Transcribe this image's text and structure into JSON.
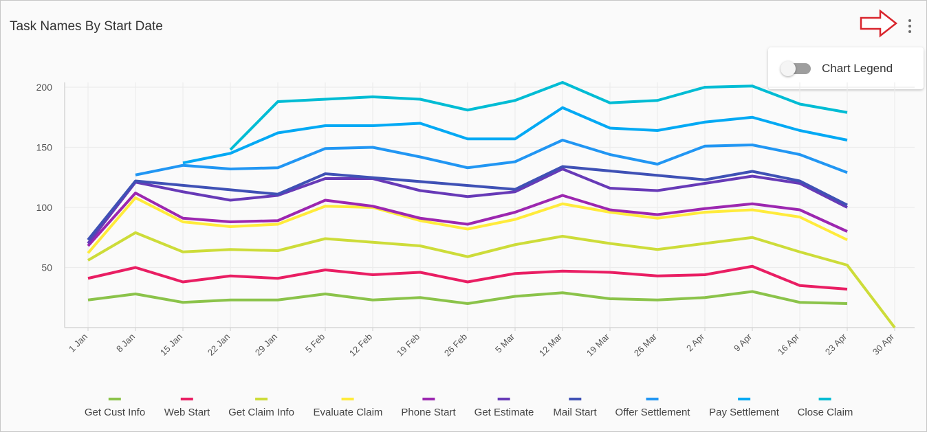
{
  "header": {
    "title": "Task Names By Start Date"
  },
  "menu": {
    "icon": "more-vertical-icon",
    "annotation_icon": "red-arrow-right-icon"
  },
  "legend_popup": {
    "label": "Chart Legend",
    "toggle_on": false
  },
  "colors": {
    "annotation": "#d9252d",
    "grid": "#e8e8e8"
  },
  "chart_data": {
    "type": "line",
    "title": "Task Names By Start Date",
    "xlabel": "",
    "ylabel": "",
    "ylim": [
      0,
      200
    ],
    "yticks": [
      50,
      100,
      150,
      200
    ],
    "grid": true,
    "legend_position": "bottom",
    "categories": [
      "1 Jan",
      "8 Jan",
      "15 Jan",
      "22 Jan",
      "29 Jan",
      "5 Feb",
      "12 Feb",
      "19 Feb",
      "26 Feb",
      "5 Mar",
      "12 Mar",
      "19 Mar",
      "26 Mar",
      "2 Apr",
      "9 Apr",
      "16 Apr",
      "23 Apr",
      "30 Apr"
    ],
    "series": [
      {
        "name": "Get Cust Info",
        "color": "#8bc34a",
        "values": [
          23,
          28,
          21,
          23,
          23,
          28,
          23,
          25,
          20,
          26,
          29,
          24,
          23,
          25,
          30,
          21,
          20,
          null
        ]
      },
      {
        "name": "Web Start",
        "color": "#e91e63",
        "values": [
          41,
          50,
          38,
          43,
          41,
          48,
          44,
          46,
          38,
          45,
          47,
          46,
          43,
          44,
          51,
          35,
          32,
          null
        ]
      },
      {
        "name": "Get Claim Info",
        "color": "#cddc39",
        "values": [
          56,
          79,
          63,
          65,
          64,
          74,
          71,
          68,
          59,
          69,
          76,
          70,
          65,
          70,
          75,
          63,
          52,
          0
        ]
      },
      {
        "name": "Evaluate Claim",
        "color": "#ffeb3b",
        "values": [
          62,
          108,
          88,
          84,
          86,
          101,
          100,
          89,
          82,
          90,
          103,
          96,
          91,
          96,
          98,
          92,
          73,
          null
        ]
      },
      {
        "name": "Phone Start",
        "color": "#9c27b0",
        "values": [
          68,
          112,
          91,
          88,
          89,
          106,
          101,
          91,
          86,
          96,
          110,
          98,
          94,
          99,
          103,
          98,
          80,
          null
        ]
      },
      {
        "name": "Get Estimate",
        "color": "#673ab7",
        "values": [
          70,
          121,
          113,
          106,
          110,
          124,
          124,
          114,
          109,
          113,
          132,
          116,
          114,
          120,
          126,
          120,
          100,
          null
        ]
      },
      {
        "name": "Mail Start",
        "color": "#3f51b5",
        "values": [
          73,
          122,
          null,
          null,
          111,
          128,
          null,
          null,
          null,
          115,
          134,
          null,
          null,
          123,
          130,
          122,
          102,
          null
        ]
      },
      {
        "name": "Offer Settlement",
        "color": "#2196f3",
        "values": [
          null,
          127,
          135,
          132,
          133,
          149,
          150,
          142,
          133,
          138,
          156,
          144,
          136,
          151,
          152,
          144,
          129,
          null
        ]
      },
      {
        "name": "Pay Settlement",
        "color": "#03a9f4",
        "values": [
          null,
          null,
          137,
          145,
          162,
          168,
          168,
          170,
          157,
          157,
          183,
          166,
          164,
          171,
          175,
          164,
          156,
          null
        ]
      },
      {
        "name": "Close Claim",
        "color": "#00bcd4",
        "values": [
          null,
          null,
          null,
          148,
          188,
          190,
          192,
          190,
          181,
          189,
          204,
          187,
          189,
          200,
          201,
          186,
          179,
          null
        ]
      }
    ]
  }
}
